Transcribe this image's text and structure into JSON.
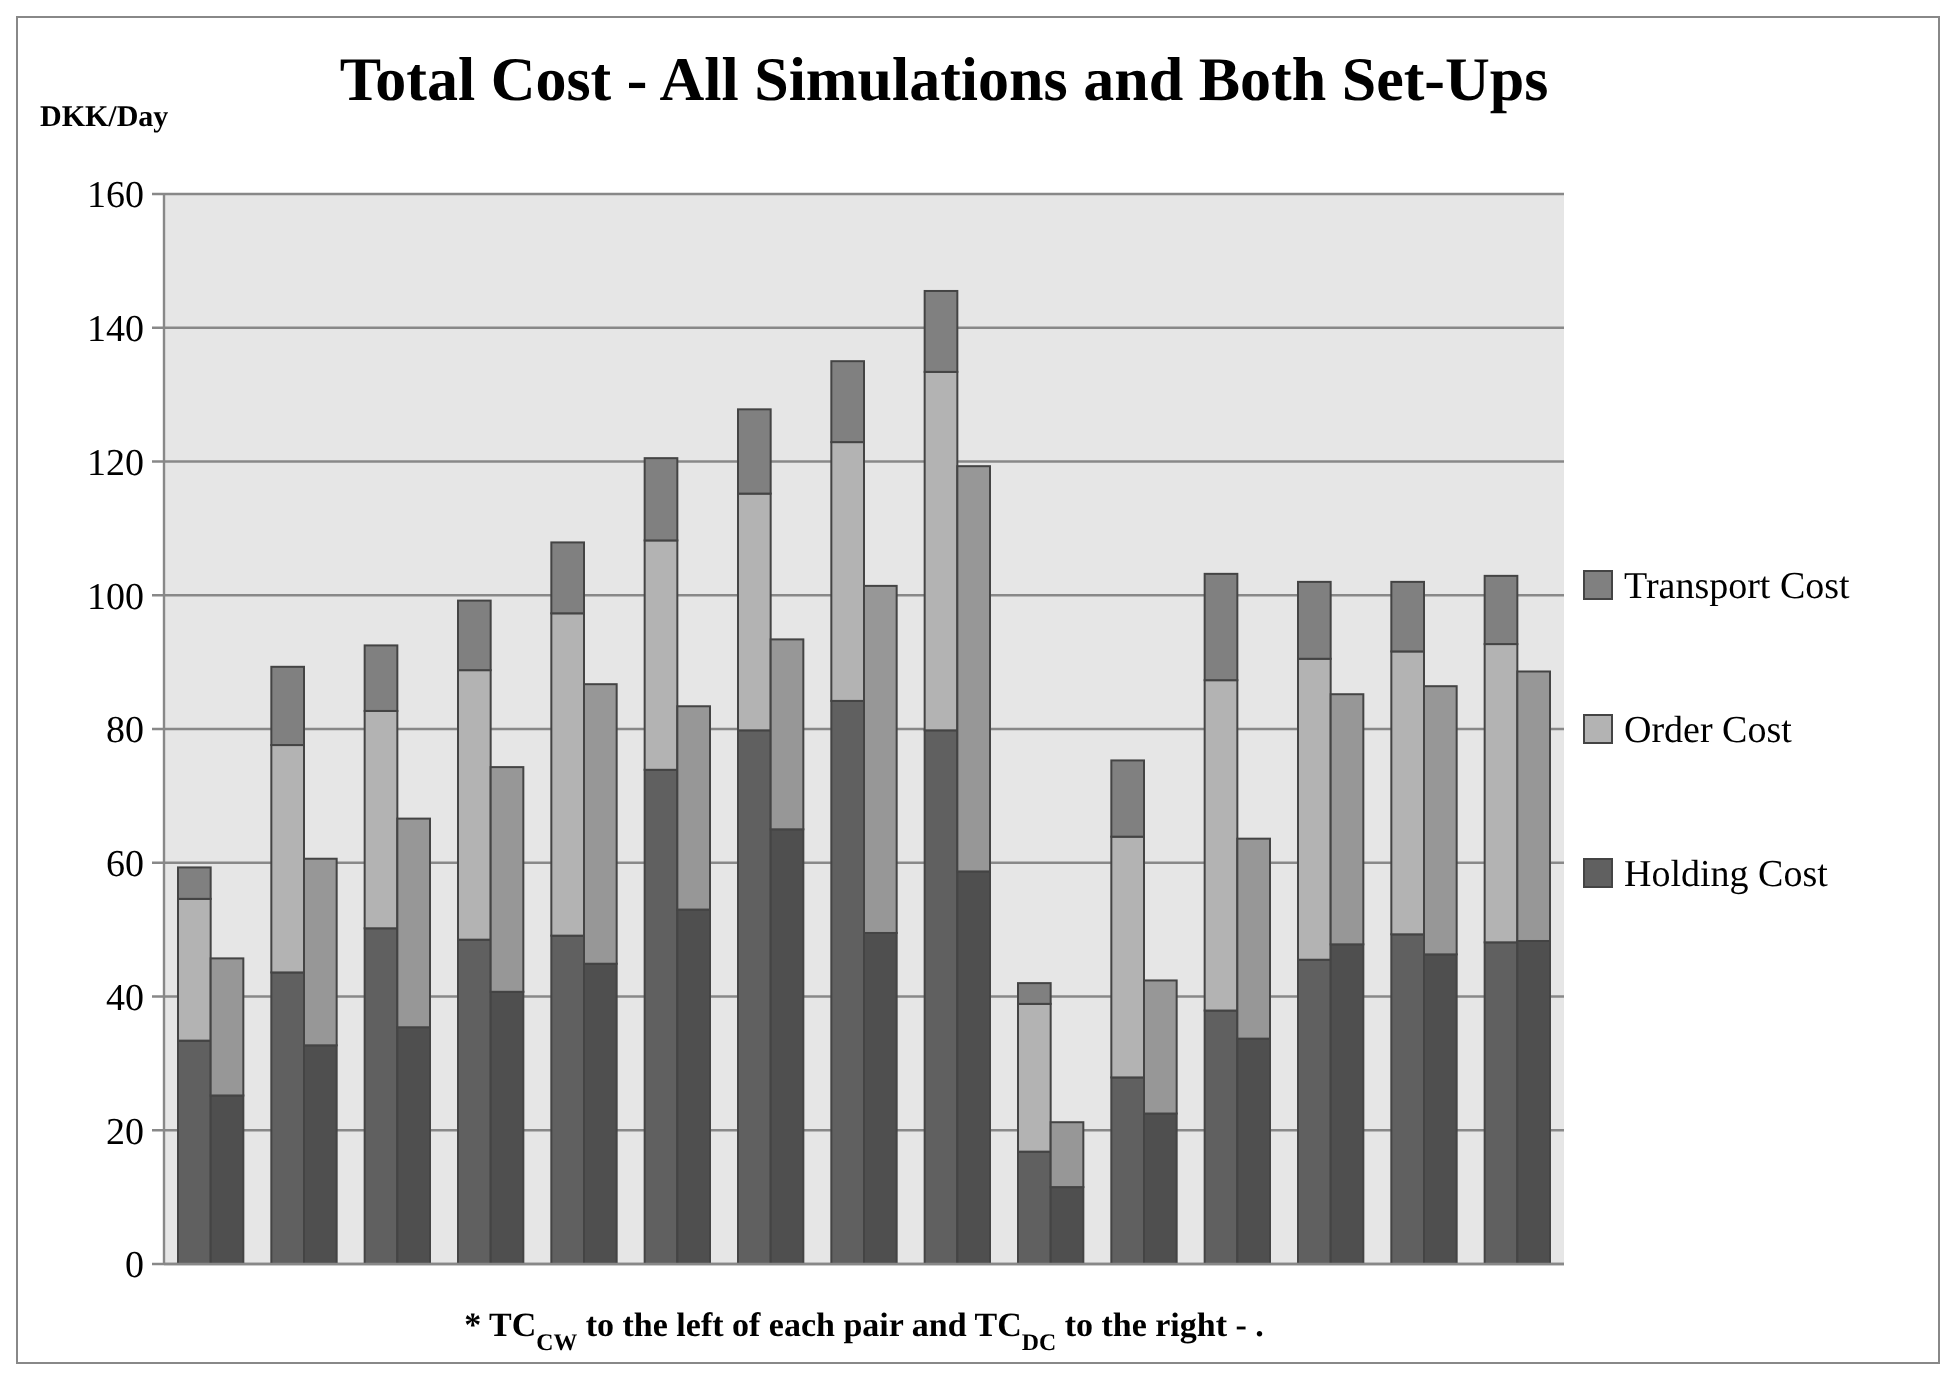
{
  "chart_data": {
    "type": "bar",
    "stacked": true,
    "title": "Total Cost - All Simulations and Both Set-Ups",
    "ylabel": "DKK/Day",
    "annotations": [
      "* TC$_{CW}$ to the left of each pair and TC$_{DC}$ to the right - ."
    ],
    "categories": [
      null,
      null,
      null,
      null,
      null,
      null,
      null,
      null,
      null,
      null,
      null,
      null,
      null,
      null,
      null,
      null,
      null,
      null,
      null,
      null,
      null,
      null,
      null,
      null,
      null,
      null,
      null,
      null,
      null,
      null
    ],
    "ylim": [
      0,
      160
    ],
    "yticks": [
      0,
      20,
      40,
      60,
      80,
      100,
      120,
      140,
      160
    ],
    "grid": "y",
    "legend": "right",
    "series": [
      {
        "name": "Holding Cost",
        "color": "#606060",
        "values": [
          33.4,
          null,
          43.6,
          null,
          50.2,
          null,
          48.5,
          null,
          49.1,
          null,
          73.9,
          null,
          79.8,
          null,
          84.2,
          null,
          79.8,
          null,
          16.8,
          null,
          27.9,
          null,
          37.9,
          null,
          45.5,
          null,
          49.3,
          null,
          48.1,
          null
        ]
      },
      {
        "name": "Order Cost",
        "color": "#b3b3b3",
        "values": [
          21.2,
          null,
          34.0,
          null,
          32.5,
          null,
          40.3,
          null,
          48.2,
          null,
          34.3,
          null,
          35.4,
          null,
          38.7,
          null,
          53.6,
          null,
          22.1,
          null,
          36.0,
          null,
          49.4,
          null,
          45.0,
          null,
          42.3,
          null,
          44.6,
          null
        ]
      },
      {
        "name": "Transport Cost",
        "color": "#808080",
        "values": [
          4.7,
          null,
          11.7,
          null,
          9.8,
          null,
          10.4,
          null,
          10.6,
          null,
          12.3,
          null,
          12.6,
          null,
          12.1,
          null,
          12.1,
          null,
          3.1,
          null,
          11.4,
          null,
          15.9,
          null,
          11.5,
          null,
          10.4,
          null,
          10.2,
          null
        ]
      },
      {
        "color": "#4f4f4f",
        "values": [
          null,
          25.2,
          null,
          32.7,
          null,
          35.4,
          null,
          40.7,
          null,
          44.9,
          null,
          53.0,
          null,
          65.0,
          null,
          49.5,
          null,
          58.7,
          null,
          11.5,
          null,
          22.5,
          null,
          33.7,
          null,
          47.8,
          null,
          46.3,
          null,
          48.3
        ]
      },
      {
        "color": "#979797",
        "values": [
          null,
          20.5,
          null,
          27.9,
          null,
          31.2,
          null,
          33.6,
          null,
          41.8,
          null,
          30.4,
          null,
          28.4,
          null,
          51.9,
          null,
          60.6,
          null,
          9.7,
          null,
          19.9,
          null,
          29.9,
          null,
          37.4,
          null,
          40.1,
          null,
          40.3
        ]
      }
    ]
  }
}
